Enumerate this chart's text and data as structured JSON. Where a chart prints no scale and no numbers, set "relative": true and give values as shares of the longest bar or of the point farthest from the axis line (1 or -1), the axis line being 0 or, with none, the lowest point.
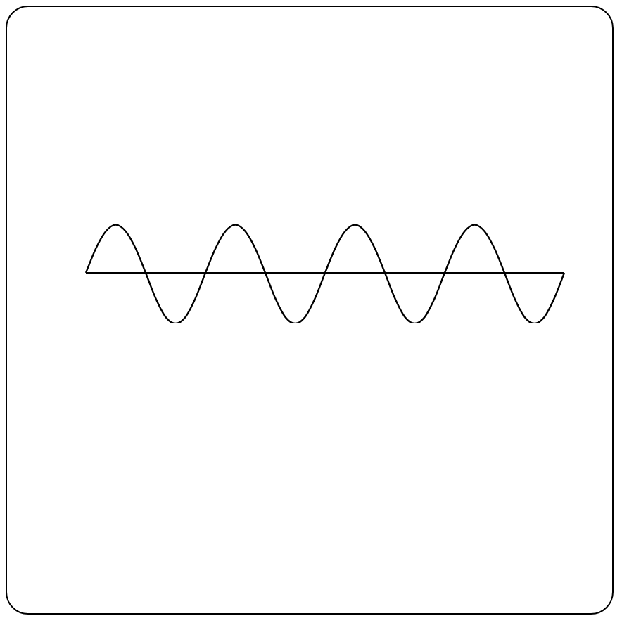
{
  "chart_data": {
    "type": "line",
    "relative": true,
    "color": "#000000",
    "marker": "none",
    "categories": [
      null,
      null,
      null,
      null,
      null,
      null,
      null,
      null,
      null,
      null,
      null,
      null,
      null,
      null,
      null,
      null,
      null,
      null,
      null,
      null,
      null,
      null,
      null,
      null,
      null,
      null,
      null,
      null,
      null,
      null,
      null,
      null,
      null,
      null,
      null,
      null,
      null,
      null,
      null,
      null,
      null,
      null,
      null,
      null,
      null,
      null,
      null,
      null,
      null
    ],
    "values": [
      0,
      0.48,
      0.82,
      0.95,
      0.82,
      0.48,
      0,
      -0.5,
      -0.87,
      -1,
      -0.87,
      -0.5,
      0,
      0.48,
      0.82,
      0.95,
      0.82,
      0.48,
      0,
      -0.5,
      -0.87,
      -1,
      -0.87,
      -0.5,
      0,
      0.48,
      0.82,
      0.95,
      0.82,
      0.48,
      0,
      -0.5,
      -0.87,
      -1,
      -0.87,
      -0.5,
      0,
      0.48,
      0.82,
      0.95,
      0.82,
      0.48,
      0,
      -0.5,
      -0.87,
      -1,
      -0.87,
      -0.5,
      0
    ]
  }
}
